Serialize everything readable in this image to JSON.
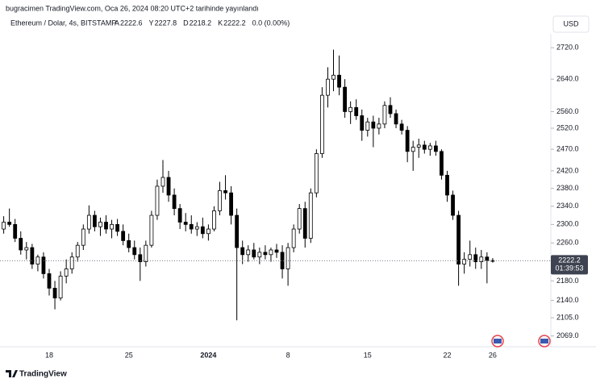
{
  "header": {
    "published": "bugracimen TradingView.com, Oca 26, 2024 08:20 UTC+2 tarihinde yayınlandı",
    "currency": "USD",
    "brand": "TradingView"
  },
  "chart_data": {
    "type": "candlestick",
    "symbol": "Ethereum / Dolar, 4s, BITSTAMP",
    "ohlc_labels": [
      "A",
      "Y",
      "D",
      "K"
    ],
    "change": "0.0 (0.00%)",
    "countdown": "01:39:53",
    "log_scale": true,
    "up_color": "#ffffff",
    "down_color": "#000000",
    "wick_color": "#000000",
    "ylim": [
      2048,
      2756
    ],
    "yticks": [
      {
        "value": 2720,
        "label": "2720.0"
      },
      {
        "value": 2640,
        "label": "2640.0"
      },
      {
        "value": 2560,
        "label": "2560.0"
      },
      {
        "value": 2520,
        "label": "2520.0"
      },
      {
        "value": 2470,
        "label": "2470.0"
      },
      {
        "value": 2420,
        "label": "2420.0"
      },
      {
        "value": 2380,
        "label": "2380.0"
      },
      {
        "value": 2340,
        "label": "2340.0"
      },
      {
        "value": 2300,
        "label": "2300.0"
      },
      {
        "value": 2260,
        "label": "2260.0"
      },
      {
        "value": 2180,
        "label": "2180.0"
      },
      {
        "value": 2140,
        "label": "2140.0"
      },
      {
        "value": 2105,
        "label": "2105.0"
      },
      {
        "value": 2069,
        "label": "2069.0"
      }
    ],
    "last_label": "2222.2",
    "categories": [
      null,
      null,
      null,
      null,
      null,
      null,
      null,
      null,
      "18",
      null,
      null,
      null,
      null,
      null,
      null,
      null,
      null,
      null,
      null,
      null,
      null,
      null,
      "25",
      null,
      null,
      null,
      null,
      null,
      null,
      null,
      null,
      null,
      null,
      null,
      null,
      null,
      "2024",
      null,
      null,
      null,
      null,
      null,
      null,
      null,
      null,
      null,
      null,
      null,
      null,
      null,
      "8",
      null,
      null,
      null,
      null,
      null,
      null,
      null,
      null,
      null,
      null,
      null,
      null,
      null,
      "15",
      null,
      null,
      null,
      null,
      null,
      null,
      null,
      null,
      null,
      null,
      null,
      null,
      null,
      "22",
      null,
      null,
      null,
      null,
      null,
      null,
      null,
      "26"
    ],
    "open": [
      2290,
      2305,
      2300,
      2270,
      2245,
      2250,
      2215,
      2230,
      2195,
      2165,
      2145,
      2190,
      2205,
      2230,
      2255,
      2290,
      2320,
      2295,
      2305,
      2290,
      2300,
      2285,
      2265,
      2250,
      2235,
      2220,
      2255,
      2320,
      2385,
      2405,
      2365,
      2335,
      2305,
      2300,
      2290,
      2295,
      2280,
      2290,
      2330,
      2375,
      2370,
      2320,
      2250,
      2235,
      2245,
      2230,
      2240,
      2235,
      2245,
      2240,
      2205,
      2250,
      2290,
      2335,
      2270,
      2370,
      2460,
      2600,
      2640,
      2650,
      2620,
      2560,
      2570,
      2550,
      2515,
      2535,
      2520,
      2530,
      2575,
      2555,
      2530,
      2515,
      2465,
      2475,
      2480,
      2470,
      2478,
      2465,
      2410,
      2365,
      2320,
      2215,
      2225,
      2235,
      2220,
      2230,
      2222.6
    ],
    "high": [
      2318,
      2335,
      2312,
      2285,
      2262,
      2258,
      2235,
      2240,
      2205,
      2180,
      2200,
      2225,
      2240,
      2262,
      2300,
      2342,
      2330,
      2315,
      2320,
      2310,
      2312,
      2300,
      2280,
      2265,
      2250,
      2265,
      2330,
      2400,
      2445,
      2420,
      2380,
      2345,
      2325,
      2320,
      2305,
      2315,
      2300,
      2340,
      2395,
      2410,
      2385,
      2335,
      2265,
      2255,
      2260,
      2250,
      2255,
      2250,
      2258,
      2255,
      2260,
      2300,
      2345,
      2350,
      2380,
      2470,
      2620,
      2670,
      2715,
      2700,
      2640,
      2585,
      2590,
      2565,
      2545,
      2550,
      2545,
      2585,
      2595,
      2565,
      2540,
      2525,
      2490,
      2495,
      2490,
      2485,
      2490,
      2470,
      2420,
      2375,
      2330,
      2240,
      2265,
      2250,
      2245,
      2240,
      2227.8
    ],
    "low": [
      2280,
      2295,
      2262,
      2235,
      2225,
      2205,
      2200,
      2185,
      2150,
      2122,
      2140,
      2175,
      2195,
      2220,
      2245,
      2280,
      2285,
      2275,
      2280,
      2270,
      2275,
      2255,
      2240,
      2225,
      2180,
      2210,
      2250,
      2310,
      2370,
      2350,
      2320,
      2290,
      2285,
      2280,
      2275,
      2270,
      2265,
      2285,
      2320,
      2355,
      2300,
      2100,
      2215,
      2220,
      2225,
      2215,
      2225,
      2220,
      2228,
      2185,
      2170,
      2240,
      2280,
      2250,
      2260,
      2360,
      2450,
      2570,
      2610,
      2600,
      2545,
      2530,
      2540,
      2490,
      2500,
      2475,
      2505,
      2520,
      2545,
      2520,
      2505,
      2440,
      2420,
      2450,
      2460,
      2455,
      2455,
      2400,
      2350,
      2310,
      2170,
      2195,
      2210,
      2205,
      2205,
      2175,
      2218.2
    ],
    "close": [
      2305,
      2300,
      2270,
      2245,
      2250,
      2215,
      2230,
      2195,
      2165,
      2145,
      2190,
      2205,
      2230,
      2255,
      2290,
      2320,
      2295,
      2305,
      2290,
      2300,
      2285,
      2265,
      2250,
      2235,
      2220,
      2255,
      2320,
      2385,
      2405,
      2365,
      2335,
      2305,
      2300,
      2290,
      2295,
      2280,
      2290,
      2330,
      2375,
      2370,
      2320,
      2250,
      2235,
      2245,
      2230,
      2240,
      2235,
      2245,
      2240,
      2205,
      2250,
      2290,
      2335,
      2270,
      2370,
      2460,
      2600,
      2640,
      2650,
      2620,
      2560,
      2570,
      2550,
      2515,
      2535,
      2520,
      2530,
      2575,
      2555,
      2530,
      2515,
      2465,
      2475,
      2480,
      2470,
      2478,
      2465,
      2410,
      2365,
      2320,
      2215,
      2225,
      2235,
      2220,
      2230,
      2222.6,
      2222.2
    ]
  }
}
